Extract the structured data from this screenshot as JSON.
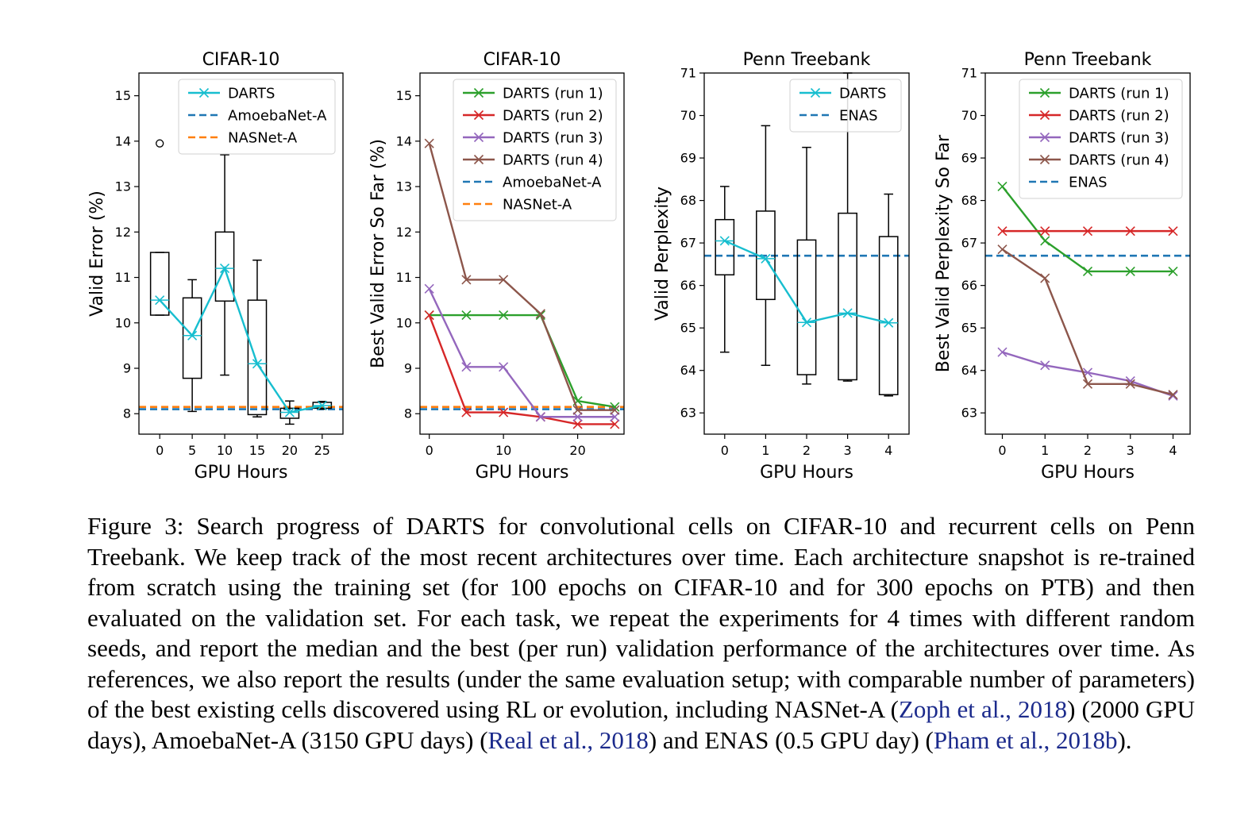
{
  "chart_data": [
    {
      "type": "box",
      "title": "CIFAR-10",
      "xlabel": "GPU Hours",
      "ylabel": "Valid Error (%)",
      "xlim": [
        -3.2,
        28.2
      ],
      "ylim": [
        7.55,
        15.5
      ],
      "xticks": [
        0,
        5,
        10,
        15,
        20,
        25
      ],
      "yticks": [
        8,
        9,
        10,
        11,
        12,
        13,
        14,
        15
      ],
      "legend_position": "top-right",
      "boxes": [
        {
          "x": 0,
          "whislo": 10.17,
          "q1": 10.17,
          "med": 10.5,
          "q3": 11.55,
          "whishi": 11.55,
          "fliers": [
            13.95
          ]
        },
        {
          "x": 5,
          "whislo": 8.05,
          "q1": 8.78,
          "med": 9.72,
          "q3": 10.55,
          "whishi": 10.95,
          "fliers": []
        },
        {
          "x": 10,
          "whislo": 8.85,
          "q1": 10.48,
          "med": 11.2,
          "q3": 12.0,
          "whishi": 13.7,
          "fliers": []
        },
        {
          "x": 15,
          "whislo": 7.93,
          "q1": 7.98,
          "med": 9.1,
          "q3": 10.5,
          "whishi": 11.38,
          "fliers": []
        },
        {
          "x": 20,
          "whislo": 7.77,
          "q1": 7.9,
          "med": 8.03,
          "q3": 8.12,
          "whishi": 8.28,
          "fliers": []
        },
        {
          "x": 25,
          "whislo": 8.1,
          "q1": 8.12,
          "med": 8.18,
          "q3": 8.25,
          "whishi": 8.27,
          "fliers": []
        }
      ],
      "series": [
        {
          "name": "DARTS",
          "style": "line-x",
          "color": "#17becf",
          "x": [
            0,
            5,
            10,
            15,
            20,
            25
          ],
          "y": [
            10.5,
            9.72,
            11.2,
            9.1,
            8.03,
            8.18
          ]
        }
      ],
      "hlines": [
        {
          "name": "AmoebaNet-A",
          "y": 8.1,
          "color": "#1f77b4"
        },
        {
          "name": "NASNet-A",
          "y": 8.15,
          "color": "#ff7f0e"
        }
      ]
    },
    {
      "type": "line",
      "title": "CIFAR-10",
      "xlabel": "GPU Hours",
      "ylabel": "Best Valid Error So Far (%)",
      "xlim": [
        -1.25,
        26.25
      ],
      "ylim": [
        7.55,
        15.5
      ],
      "xticks": [
        0,
        10,
        20
      ],
      "yticks": [
        8,
        9,
        10,
        11,
        12,
        13,
        14,
        15
      ],
      "legend_position": "top-right",
      "series": [
        {
          "name": "DARTS (run 1)",
          "color": "#2ca02c",
          "x": [
            0,
            5,
            10,
            15,
            20,
            25
          ],
          "y": [
            10.17,
            10.17,
            10.17,
            10.17,
            8.28,
            8.15
          ]
        },
        {
          "name": "DARTS (run 2)",
          "color": "#d62728",
          "x": [
            0,
            5,
            10,
            15,
            20,
            25
          ],
          "y": [
            10.17,
            8.03,
            8.03,
            7.93,
            7.77,
            7.77
          ]
        },
        {
          "name": "DARTS (run 3)",
          "color": "#9467bd",
          "x": [
            0,
            5,
            10,
            15,
            20,
            25
          ],
          "y": [
            10.75,
            9.03,
            9.03,
            7.93,
            7.93,
            7.93
          ]
        },
        {
          "name": "DARTS (run 4)",
          "color": "#8c564b",
          "x": [
            0,
            5,
            10,
            15,
            20,
            25
          ],
          "y": [
            13.95,
            10.95,
            10.95,
            10.2,
            8.08,
            8.08
          ]
        }
      ],
      "hlines": [
        {
          "name": "AmoebaNet-A",
          "y": 8.1,
          "color": "#1f77b4"
        },
        {
          "name": "NASNet-A",
          "y": 8.15,
          "color": "#ff7f0e"
        }
      ]
    },
    {
      "type": "box",
      "title": "Penn Treebank",
      "xlabel": "GPU Hours",
      "ylabel": "Valid Perplexity",
      "xlim": [
        -0.5,
        4.5
      ],
      "ylim": [
        62.5,
        71
      ],
      "xticks": [
        0,
        1,
        2,
        3,
        4
      ],
      "yticks": [
        63,
        64,
        65,
        66,
        67,
        68,
        69,
        70,
        71
      ],
      "legend_position": "top-right",
      "boxes": [
        {
          "x": 0,
          "whislo": 64.43,
          "q1": 66.25,
          "med": 67.05,
          "q3": 67.55,
          "whishi": 68.33,
          "fliers": []
        },
        {
          "x": 1,
          "whislo": 64.12,
          "q1": 65.67,
          "med": 66.63,
          "q3": 67.75,
          "whishi": 69.76,
          "fliers": []
        },
        {
          "x": 2,
          "whislo": 63.68,
          "q1": 63.9,
          "med": 65.13,
          "q3": 67.07,
          "whishi": 69.25,
          "fliers": []
        },
        {
          "x": 3,
          "whislo": 63.75,
          "q1": 63.78,
          "med": 65.35,
          "q3": 67.7,
          "whishi": 71.0,
          "fliers": []
        },
        {
          "x": 4,
          "whislo": 63.4,
          "q1": 63.43,
          "med": 65.12,
          "q3": 67.15,
          "whishi": 68.15,
          "fliers": []
        }
      ],
      "series": [
        {
          "name": "DARTS",
          "style": "line-x",
          "color": "#17becf",
          "x": [
            0,
            1,
            2,
            3,
            4
          ],
          "y": [
            67.05,
            66.63,
            65.13,
            65.35,
            65.12
          ]
        }
      ],
      "hlines": [
        {
          "name": "ENAS",
          "y": 66.7,
          "color": "#1f77b4"
        }
      ]
    },
    {
      "type": "line",
      "title": "Penn Treebank",
      "xlabel": "GPU Hours",
      "ylabel": "Best Valid Perplexity So Far",
      "xlim": [
        -0.4,
        4.4
      ],
      "ylim": [
        62.5,
        71
      ],
      "xticks": [
        0,
        1,
        2,
        3,
        4
      ],
      "yticks": [
        63,
        64,
        65,
        66,
        67,
        68,
        69,
        70,
        71
      ],
      "legend_position": "top-right",
      "series": [
        {
          "name": "DARTS (run 1)",
          "color": "#2ca02c",
          "x": [
            0,
            1,
            2,
            3,
            4
          ],
          "y": [
            68.33,
            67.05,
            66.33,
            66.33,
            66.33
          ]
        },
        {
          "name": "DARTS (run 2)",
          "color": "#d62728",
          "x": [
            0,
            1,
            2,
            3,
            4
          ],
          "y": [
            67.28,
            67.28,
            67.28,
            67.28,
            67.28
          ]
        },
        {
          "name": "DARTS (run 3)",
          "color": "#9467bd",
          "x": [
            0,
            1,
            2,
            3,
            4
          ],
          "y": [
            64.43,
            64.12,
            63.95,
            63.75,
            63.4
          ]
        },
        {
          "name": "DARTS (run 4)",
          "color": "#8c564b",
          "x": [
            0,
            1,
            2,
            3,
            4
          ],
          "y": [
            66.85,
            66.17,
            63.68,
            63.68,
            63.43
          ]
        }
      ],
      "hlines": [
        {
          "name": "ENAS",
          "y": 66.7,
          "color": "#1f77b4"
        }
      ]
    }
  ],
  "caption": {
    "part1": "Figure 3: Search progress of DARTS for convolutional cells on CIFAR-10 and recurrent cells on Penn Treebank. We keep track of the most recent architectures over time. Each architecture snapshot is re-trained from scratch using the training set (for 100 epochs on CIFAR-10 and for 300 epochs on PTB) and then evaluated on the validation set. For each task, we repeat the experiments for 4 times with different random seeds, and report the median and the best (per run) validation performance of the architectures over time. As references, we also report the results (under the same evaluation setup; with comparable number of parameters) of the best existing cells discovered using RL or evolution, including NASNet-A (",
    "cite1": "Zoph et al., 2018",
    "part2": ") (2000 GPU days), AmoebaNet-A (3150 GPU days) (",
    "cite2": "Real et al., 2018",
    "part3": ") and ENAS (0.5 GPU day) (",
    "cite3": "Pham et al., 2018b",
    "part4": ")."
  }
}
